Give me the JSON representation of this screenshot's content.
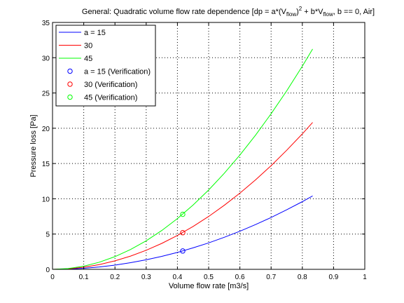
{
  "chart_data": {
    "type": "line",
    "title": {
      "prefix": "General: Quadratic volume flow rate dependence [dp = a*(V",
      "sub1": "flow",
      "mid1": ")",
      "sup": "2",
      "mid2": " + b*V",
      "sub2": "flow",
      "suffix": ", b == 0, Air]"
    },
    "xlabel": "Volume flow rate [m3/s]",
    "ylabel": "Pressure loss [Pa]",
    "xlim": [
      0,
      1
    ],
    "ylim": [
      0,
      35
    ],
    "xticks": [
      0,
      0.1,
      0.2,
      0.3,
      0.4,
      0.5,
      0.6,
      0.7,
      0.8,
      0.9,
      1
    ],
    "xtick_labels": [
      "0",
      "0.1",
      "0.2",
      "0.3",
      "0.4",
      "0.5",
      "0.6",
      "0.7",
      "0.8",
      "0.9",
      "1"
    ],
    "yticks": [
      0,
      5,
      10,
      15,
      20,
      25,
      30,
      35
    ],
    "ytick_labels": [
      "0",
      "5",
      "10",
      "15",
      "20",
      "25",
      "30",
      "35"
    ],
    "grid": true,
    "legend_position": "top-left",
    "series": [
      {
        "name": "a = 15",
        "kind": "line",
        "color": "#0000ff",
        "x": [
          0,
          0.05,
          0.1,
          0.15,
          0.2,
          0.25,
          0.3,
          0.35,
          0.4,
          0.45,
          0.5,
          0.55,
          0.6,
          0.65,
          0.7,
          0.75,
          0.8,
          0.833
        ],
        "y": [
          0,
          0.04,
          0.15,
          0.34,
          0.6,
          0.94,
          1.35,
          1.84,
          2.4,
          3.04,
          3.75,
          4.54,
          5.4,
          6.34,
          7.35,
          8.44,
          9.6,
          10.41
        ]
      },
      {
        "name": "30",
        "kind": "line",
        "color": "#ff0000",
        "x": [
          0,
          0.05,
          0.1,
          0.15,
          0.2,
          0.25,
          0.3,
          0.35,
          0.4,
          0.45,
          0.5,
          0.55,
          0.6,
          0.65,
          0.7,
          0.75,
          0.8,
          0.833
        ],
        "y": [
          0,
          0.08,
          0.3,
          0.68,
          1.2,
          1.88,
          2.7,
          3.68,
          4.8,
          6.08,
          7.5,
          9.08,
          10.8,
          12.68,
          14.7,
          16.88,
          19.2,
          20.82
        ]
      },
      {
        "name": "45",
        "kind": "line",
        "color": "#00ff00",
        "x": [
          0,
          0.05,
          0.1,
          0.15,
          0.2,
          0.25,
          0.3,
          0.35,
          0.4,
          0.45,
          0.5,
          0.55,
          0.6,
          0.65,
          0.7,
          0.75,
          0.8,
          0.833
        ],
        "y": [
          0,
          0.11,
          0.45,
          1.01,
          1.8,
          2.81,
          4.05,
          5.51,
          7.2,
          9.11,
          11.25,
          13.61,
          16.2,
          19.01,
          22.05,
          25.31,
          28.8,
          31.23
        ]
      },
      {
        "name": "a = 15 (Verification)",
        "kind": "marker",
        "color": "#0000ff",
        "x": [
          0.417
        ],
        "y": [
          2.6
        ]
      },
      {
        "name": "30 (Verification)",
        "kind": "marker",
        "color": "#ff0000",
        "x": [
          0.417
        ],
        "y": [
          5.2
        ]
      },
      {
        "name": "45 (Verification)",
        "kind": "marker",
        "color": "#00ff00",
        "x": [
          0.417
        ],
        "y": [
          7.8
        ]
      }
    ]
  }
}
